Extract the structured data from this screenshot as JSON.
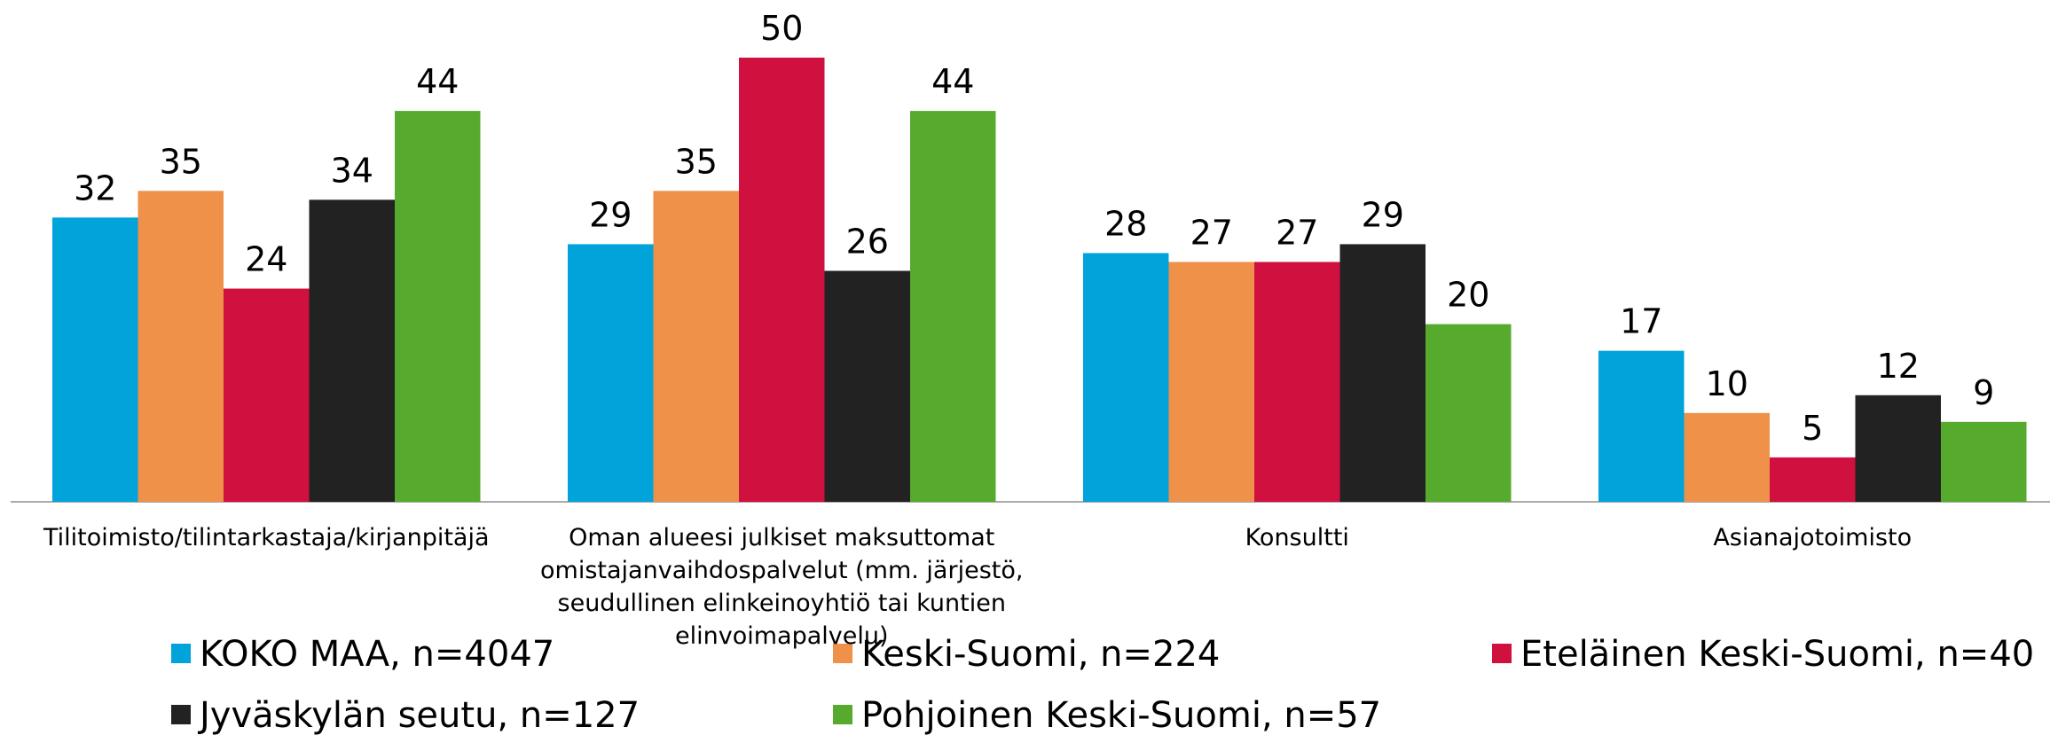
{
  "chart_data": {
    "type": "bar",
    "categories": [
      "Tilitoimisto/tilintarkastaja/kirjanpitäjä",
      "Oman alueesi julkiset maksuttomat omistajanvaihdospalvelut (mm. järjestö, seudullinen elinkeinoyhtiö tai kuntien elinvoimapalvelu)",
      "Konsultti",
      "Asianajotoimisto"
    ],
    "series": [
      {
        "name": "KOKO MAA, n=4047",
        "color": "#00a3da",
        "values": [
          32,
          29,
          28,
          17
        ]
      },
      {
        "name": "Keski-Suomi, n=224",
        "color": "#f0914a",
        "values": [
          35,
          35,
          27,
          10
        ]
      },
      {
        "name": "Eteläinen Keski-Suomi, n=40",
        "color": "#d0103e",
        "values": [
          24,
          50,
          27,
          5
        ]
      },
      {
        "name": "Jyväskylän seutu, n=127",
        "color": "#222222",
        "values": [
          34,
          26,
          29,
          12
        ]
      },
      {
        "name": "Pohjoinen Keski-Suomi, n=57",
        "color": "#56aa2e",
        "values": [
          44,
          44,
          20,
          9
        ]
      }
    ],
    "legend": "bottom"
  }
}
